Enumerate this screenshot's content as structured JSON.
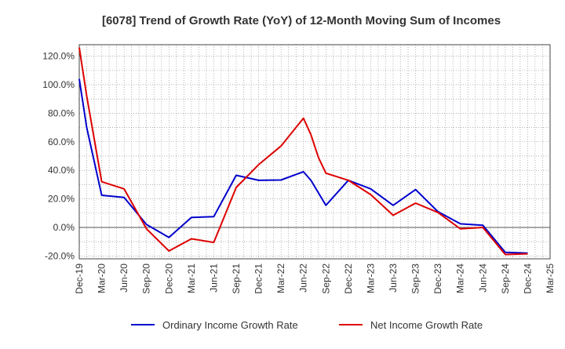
{
  "chart_data": {
    "type": "line",
    "title": "[6078]  Trend of Growth Rate (YoY) of 12-Month Moving Sum of Incomes",
    "x_tick_labels": [
      "Dec-19",
      "Mar-20",
      "Jun-20",
      "Sep-20",
      "Dec-20",
      "Mar-21",
      "Jun-21",
      "Sep-21",
      "Dec-21",
      "Mar-22",
      "Jun-22",
      "Sep-22",
      "Dec-22",
      "Mar-23",
      "Jun-23",
      "Sep-23",
      "Dec-23",
      "Mar-24",
      "Jun-24",
      "Sep-24",
      "Dec-24",
      "Mar-25"
    ],
    "y_tick_labels": [
      "-20.0%",
      "0.0%",
      "20.0%",
      "40.0%",
      "60.0%",
      "80.0%",
      "100.0%",
      "120.0%"
    ],
    "ylim": [
      -22,
      128
    ],
    "y_ticks": [
      -20,
      0,
      20,
      40,
      60,
      80,
      100,
      120
    ],
    "grid": true,
    "legend_position": "bottom",
    "series": [
      {
        "name": "Ordinary Income Growth Rate",
        "color": "#0000cc",
        "points": [
          [
            0,
            104
          ],
          [
            1,
            70
          ],
          [
            3,
            22.5
          ],
          [
            6,
            21
          ],
          [
            9,
            2
          ],
          [
            12,
            -7
          ],
          [
            15,
            7
          ],
          [
            18,
            7.5
          ],
          [
            21,
            36.5
          ],
          [
            24,
            33
          ],
          [
            27,
            33.2
          ],
          [
            30,
            39
          ],
          [
            31,
            33
          ],
          [
            33,
            15.5
          ],
          [
            36,
            33
          ],
          [
            39,
            27
          ],
          [
            42,
            15.5
          ],
          [
            45,
            26.5
          ],
          [
            48,
            11
          ],
          [
            51,
            2.5
          ],
          [
            54,
            1.5
          ],
          [
            57,
            -17.5
          ],
          [
            60,
            -18
          ]
        ]
      },
      {
        "name": "Net Income Growth Rate",
        "color": "#dd0000",
        "points": [
          [
            0,
            126
          ],
          [
            1,
            92
          ],
          [
            3,
            32
          ],
          [
            6,
            27
          ],
          [
            9,
            -1
          ],
          [
            12,
            -16.5
          ],
          [
            15,
            -8
          ],
          [
            18,
            -10.5
          ],
          [
            21,
            28
          ],
          [
            24,
            44
          ],
          [
            27,
            57
          ],
          [
            30,
            76.5
          ],
          [
            31,
            65
          ],
          [
            32,
            49
          ],
          [
            33,
            38
          ],
          [
            36,
            33
          ],
          [
            39,
            23
          ],
          [
            42,
            8.5
          ],
          [
            45,
            17
          ],
          [
            48,
            10.5
          ],
          [
            51,
            -1
          ],
          [
            54,
            0
          ],
          [
            57,
            -19
          ],
          [
            60,
            -18.5
          ]
        ]
      }
    ]
  }
}
